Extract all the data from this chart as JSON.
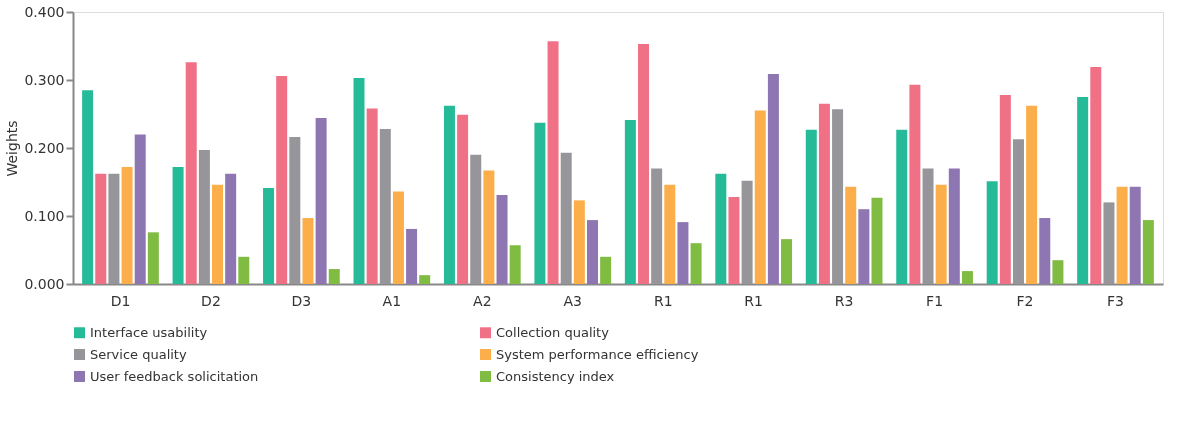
{
  "chart_data": {
    "type": "bar",
    "ylabel": "Weights",
    "categories": [
      "D1",
      "D2",
      "D3",
      "A1",
      "A2",
      "A3",
      "R1",
      "R1",
      "R3",
      "F1",
      "F2",
      "F3"
    ],
    "ylim": [
      0,
      0.4
    ],
    "yticks": [
      {
        "value": 0,
        "label": "0.000"
      },
      {
        "value": 0.1,
        "label": "0.100"
      },
      {
        "value": 0.2,
        "label": "0.200"
      },
      {
        "value": 0.3,
        "label": "0.300"
      },
      {
        "value": 0.4,
        "label": "0.400"
      }
    ],
    "grid": false,
    "legend": "bottom",
    "series": [
      {
        "name": "Interface usability",
        "color": "#26bb98",
        "values": [
          0.285,
          0.172,
          0.141,
          0.303,
          0.262,
          0.237,
          0.241,
          0.162,
          0.227,
          0.227,
          0.151,
          0.275
        ]
      },
      {
        "name": "Collection quality",
        "color": "#f07186",
        "values": [
          0.162,
          0.326,
          0.306,
          0.258,
          0.249,
          0.357,
          0.353,
          0.128,
          0.265,
          0.293,
          0.278,
          0.319
        ]
      },
      {
        "name": "Service quality",
        "color": "#96969a",
        "values": [
          0.162,
          0.197,
          0.216,
          0.228,
          0.19,
          0.193,
          0.17,
          0.152,
          0.257,
          0.17,
          0.213,
          0.12
        ]
      },
      {
        "name": "System performance efficiency",
        "color": "#fbae4a",
        "values": [
          0.172,
          0.146,
          0.097,
          0.136,
          0.167,
          0.123,
          0.146,
          0.255,
          0.143,
          0.146,
          0.262,
          0.143
        ]
      },
      {
        "name": "User feedback solicitation",
        "color": "#8e76b2",
        "values": [
          0.22,
          0.162,
          0.244,
          0.081,
          0.131,
          0.094,
          0.091,
          0.309,
          0.11,
          0.17,
          0.097,
          0.143
        ]
      },
      {
        "name": "Consistency index",
        "color": "#80bc41",
        "values": [
          0.076,
          0.04,
          0.022,
          0.013,
          0.057,
          0.04,
          0.06,
          0.066,
          0.127,
          0.019,
          0.035,
          0.094
        ]
      }
    ]
  }
}
